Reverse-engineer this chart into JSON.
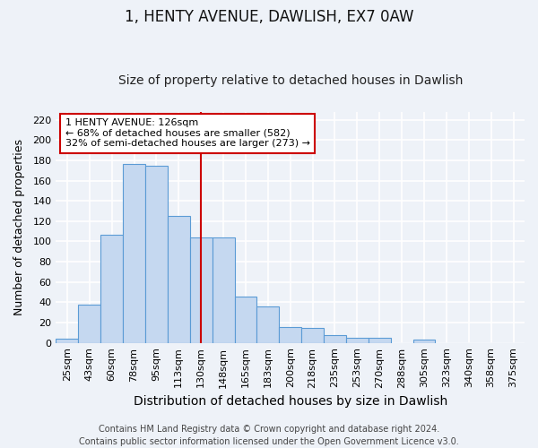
{
  "title": "1, HENTY AVENUE, DAWLISH, EX7 0AW",
  "subtitle": "Size of property relative to detached houses in Dawlish",
  "xlabel": "Distribution of detached houses by size in Dawlish",
  "ylabel": "Number of detached properties",
  "bar_values": [
    4,
    38,
    107,
    176,
    175,
    125,
    104,
    104,
    46,
    36,
    16,
    15,
    8,
    5,
    5,
    0,
    3,
    0,
    0,
    0,
    0
  ],
  "bin_labels": [
    "25sqm",
    "43sqm",
    "60sqm",
    "78sqm",
    "95sqm",
    "113sqm",
    "130sqm",
    "148sqm",
    "165sqm",
    "183sqm",
    "200sqm",
    "218sqm",
    "235sqm",
    "253sqm",
    "270sqm",
    "288sqm",
    "305sqm",
    "323sqm",
    "340sqm",
    "358sqm",
    "375sqm"
  ],
  "bar_color": "#c5d8f0",
  "bar_edge_color": "#5b9bd5",
  "vline_x_index": 6,
  "vline_color": "#cc0000",
  "annotation_text": "1 HENTY AVENUE: 126sqm\n← 68% of detached houses are smaller (582)\n32% of semi-detached houses are larger (273) →",
  "annotation_bbox_facecolor": "white",
  "annotation_bbox_edgecolor": "#cc0000",
  "ylim": [
    0,
    228
  ],
  "yticks": [
    0,
    20,
    40,
    60,
    80,
    100,
    120,
    140,
    160,
    180,
    200,
    220
  ],
  "background_color": "#eef2f8",
  "grid_color": "white",
  "title_fontsize": 12,
  "subtitle_fontsize": 10,
  "xlabel_fontsize": 10,
  "ylabel_fontsize": 9,
  "tick_fontsize": 8,
  "annot_fontsize": 8,
  "footnote": "Contains HM Land Registry data © Crown copyright and database right 2024.\nContains public sector information licensed under the Open Government Licence v3.0.",
  "footnote_fontsize": 7
}
